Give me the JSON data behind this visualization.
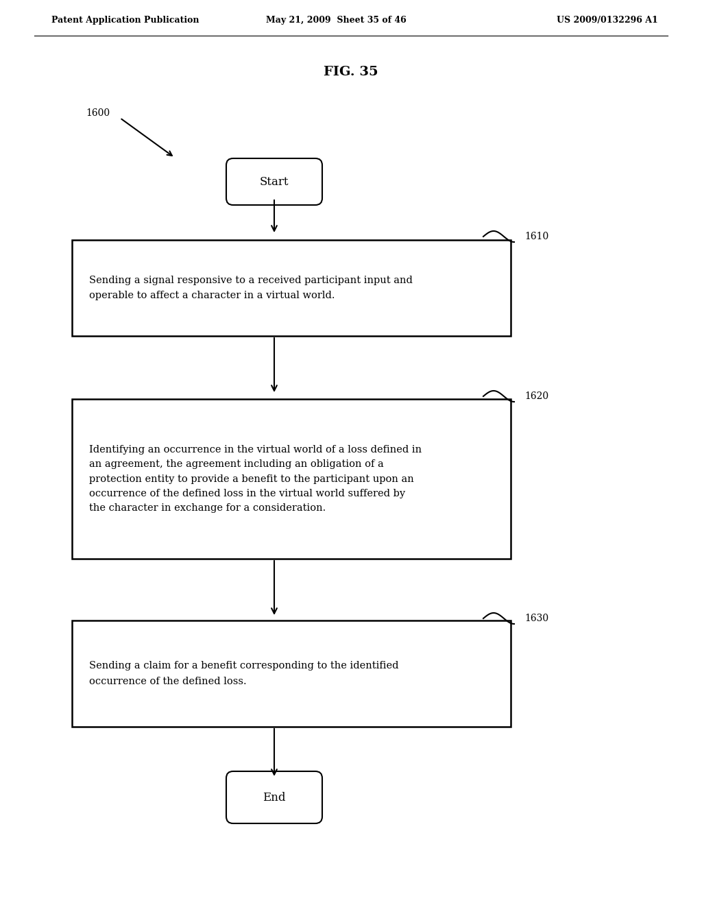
{
  "background_color": "#ffffff",
  "header_left": "Patent Application Publication",
  "header_center": "May 21, 2009  Sheet 35 of 46",
  "header_right": "US 2009/0132296 A1",
  "fig_title": "FIG. 35",
  "fig_label": "1600",
  "start_label": "Start",
  "end_label": "End",
  "box1_label": "1610",
  "box2_label": "1620",
  "box3_label": "1630",
  "box1_text": "Sending a signal responsive to a received participant input and\noperable to affect a character in a virtual world.",
  "box2_text": "Identifying an occurrence in the virtual world of a loss defined in\nan agreement, the agreement including an obligation of a\nprotection entity to provide a benefit to the participant upon an\noccurrence of the defined loss in the virtual world suffered by\nthe character in exchange for a consideration.",
  "box3_text": "Sending a claim for a benefit corresponding to the identified\noccurrence of the defined loss."
}
